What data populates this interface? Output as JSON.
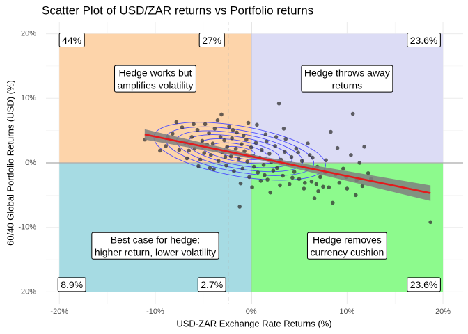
{
  "chart_data": {
    "type": "scatter",
    "title": "Scatter Plot of USD/ZAR returns vs Portfolio returns",
    "x_label": "USD-ZAR Exchange Rate Returns (%)",
    "y_label": "60/40 Global Portfolio Returns (USD) (%)",
    "xlim": [
      -21.4,
      22.1
    ],
    "ylim": [
      -21.9,
      21.9
    ],
    "xticks": [
      {
        "value": -20,
        "label": "-20%"
      },
      {
        "value": -10,
        "label": "-10%"
      },
      {
        "value": 0,
        "label": "0%"
      },
      {
        "value": 10,
        "label": "10%"
      },
      {
        "value": 20,
        "label": "20%"
      }
    ],
    "yticks": [
      {
        "value": -20,
        "label": "-20%"
      },
      {
        "value": -10,
        "label": "-10%"
      },
      {
        "value": 0,
        "label": "0%"
      },
      {
        "value": 10,
        "label": "10%"
      },
      {
        "value": 20,
        "label": "20%"
      }
    ],
    "minor_xticks": [
      -15,
      -5,
      5,
      15
    ],
    "minor_yticks": [
      -15,
      -5,
      5,
      15
    ],
    "grid": true,
    "regions": [
      {
        "x": [
          -20,
          0
        ],
        "y": [
          0,
          20
        ],
        "color": "#fdd4aa"
      },
      {
        "x": [
          0,
          20
        ],
        "y": [
          0,
          20
        ],
        "color": "#dcdcf5"
      },
      {
        "x": [
          -20,
          0
        ],
        "y": [
          -20,
          0
        ],
        "color": "#a6dbe3"
      },
      {
        "x": [
          0,
          20
        ],
        "y": [
          -20,
          0
        ],
        "color": "#8dfa8d"
      }
    ],
    "vline_dashed": -2.4,
    "points": {
      "color": "#333333",
      "x": [
        -11.1,
        -8.2,
        -7.8,
        -7.2,
        -6.9,
        -6.5,
        -6.2,
        -5.9,
        -5.6,
        -5.3,
        -5.1,
        -4.8,
        -4.6,
        -4.4,
        -4.2,
        -4.0,
        -3.8,
        -3.6,
        -3.4,
        -3.2,
        -3.0,
        -2.8,
        -2.6,
        -2.5,
        -2.3,
        -2.1,
        -2.0,
        -1.8,
        -1.6,
        -1.5,
        -1.3,
        -1.2,
        -1.0,
        -0.9,
        -0.7,
        -0.5,
        -0.4,
        -0.2,
        0.0,
        0.2,
        0.3,
        0.5,
        0.7,
        0.9,
        1.1,
        1.3,
        1.5,
        1.7,
        1.9,
        2.1,
        2.3,
        2.5,
        2.7,
        2.9,
        3.1,
        3.3,
        3.5,
        3.8,
        4.0,
        4.2,
        4.5,
        4.7,
        5.0,
        5.3,
        5.5,
        5.8,
        6.1,
        6.3,
        6.6,
        6.9,
        7.2,
        7.5,
        7.8,
        8.3,
        8.5,
        8.8,
        9.2,
        9.6,
        10.0,
        10.4,
        10.6,
        11.0,
        11.3,
        11.8,
        12.2,
        18.7,
        -9.5,
        -8.9,
        -7.5,
        -6.0,
        -5.5,
        -4.9,
        -3.9,
        -3.1,
        -2.7,
        -1.9,
        -0.8,
        0.1,
        0.6,
        1.0,
        1.6,
        2.0,
        2.6,
        3.0,
        3.6,
        4.3,
        4.9,
        5.6,
        6.4,
        7.0,
        7.7,
        8.1,
        9.0,
        9.9,
        10.9,
        11.6,
        12.5,
        -8.7,
        -6.7,
        -4.3,
        -3.5,
        -1.1,
        -0.3,
        1.4,
        3.4,
        5.9,
        6.8
      ],
      "values": [
        3.6,
        4.5,
        6.3,
        5.5,
        3.1,
        1.9,
        4.0,
        2.2,
        5.1,
        0.5,
        3.4,
        6.0,
        2.8,
        4.6,
        1.2,
        3.0,
        5.3,
        2.1,
        0.3,
        4.0,
        1.6,
        3.5,
        -0.4,
        2.5,
        5.6,
        1.0,
        3.8,
        -1.3,
        2.2,
        4.7,
        0.6,
        -6.8,
        2.9,
        -0.9,
        1.8,
        3.6,
        0.2,
        -2.2,
        2.4,
        1.1,
        -0.6,
        3.1,
        -1.5,
        0.8,
        2.0,
        -0.3,
        4.4,
        -2.6,
        1.4,
        0.1,
        -1.2,
        2.6,
        -0.8,
        9.2,
        0.5,
        -2.0,
        1.7,
        -0.2,
        -3.3,
        0.9,
        -1.4,
        2.2,
        -2.5,
        0.3,
        -4.0,
        -1.0,
        1.2,
        -2.9,
        -5.5,
        -0.6,
        -2.2,
        -3.7,
        0.4,
        4.8,
        -6.2,
        -1.8,
        -3.1,
        -0.9,
        -4.0,
        1.2,
        7.6,
        -2.7,
        0.0,
        2.5,
        -1.6,
        -9.2,
        1.9,
        2.6,
        2.0,
        6.0,
        -0.5,
        1.5,
        -1.0,
        7.5,
        0.9,
        5.1,
        4.2,
        -3.8,
        5.9,
        -2.8,
        3.3,
        -4.6,
        4.0,
        -3.5,
        3.7,
        -2.3,
        1.6,
        -3.1,
        0.8,
        -4.4,
        -1.5,
        -3.8,
        2.3,
        -2.2,
        -5.0,
        -3.6,
        -2.5,
        4.0,
        0.7,
        -0.8,
        6.6,
        -3.2,
        6.2,
        -1.9,
        5.3,
        3.0,
        -3.3
      ]
    },
    "regression": {
      "color": "#e41a1c",
      "band_color": "#7f7f7f",
      "x": [
        -11.1,
        1.0,
        18.7
      ],
      "y": [
        4.4,
        0.7,
        -4.7
      ],
      "lower": [
        3.6,
        0.4,
        -5.9
      ],
      "upper": [
        5.2,
        1.0,
        -3.5
      ]
    },
    "corner_labels": [
      {
        "text": "44%",
        "x": -18.7,
        "y": 18.9
      },
      {
        "text": "27%",
        "x": -4.1,
        "y": 18.9
      },
      {
        "text": "23.6%",
        "x": 18.0,
        "y": 18.9
      },
      {
        "text": "8.9%",
        "x": -18.7,
        "y": -19.0
      },
      {
        "text": "2.7%",
        "x": -4.1,
        "y": -19.0
      },
      {
        "text": "23.6%",
        "x": 18.0,
        "y": -19.0
      }
    ],
    "annotations": [
      {
        "lines": [
          "Hedge works but",
          "amplifies volatility"
        ],
        "x": -10,
        "y": 12.9
      },
      {
        "lines": [
          "Hedge throws away",
          "returns"
        ],
        "x": 10,
        "y": 12.9
      },
      {
        "lines": [
          "Best case for hedge:",
          "higher return, lower volatility"
        ],
        "x": -10,
        "y": -13.0
      },
      {
        "lines": [
          "Hedge removes",
          "currency cushion"
        ],
        "x": 10,
        "y": -13.0
      }
    ]
  }
}
